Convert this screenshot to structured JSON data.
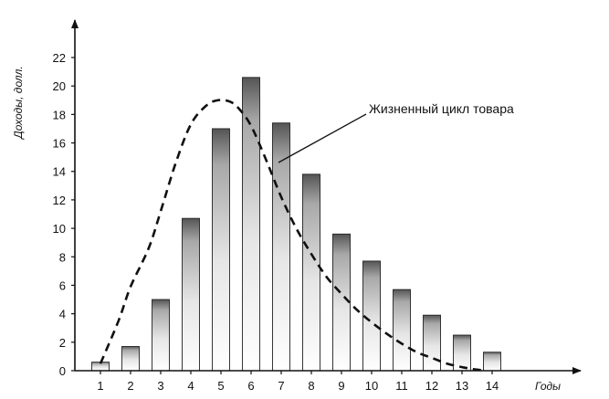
{
  "chart_data": {
    "type": "bar",
    "categories": [
      "1",
      "2",
      "3",
      "4",
      "5",
      "6",
      "7",
      "8",
      "9",
      "10",
      "11",
      "12",
      "13",
      "14"
    ],
    "values": [
      0.6,
      1.7,
      5.0,
      10.7,
      17.0,
      20.6,
      17.4,
      13.8,
      9.6,
      7.7,
      5.7,
      3.9,
      2.5,
      1.3
    ],
    "curve": {
      "label": "Жизненный цикл товара",
      "style": "dashed",
      "x": [
        1,
        1.6,
        2,
        2.6,
        3,
        3.5,
        4,
        4.5,
        4.9,
        5.3,
        5.6,
        6,
        6.5,
        7,
        7.5,
        8,
        8.5,
        9,
        9.5,
        10,
        10.5,
        11,
        11.5,
        12,
        12.5,
        13,
        13.4,
        13.8
      ],
      "y": [
        0.5,
        3.5,
        5.9,
        8.6,
        11.2,
        14.6,
        17.3,
        18.6,
        19.0,
        18.9,
        18.4,
        17.2,
        14.8,
        12.2,
        10.0,
        8.2,
        6.6,
        5.4,
        4.3,
        3.4,
        2.6,
        1.9,
        1.3,
        0.9,
        0.5,
        0.25,
        0.1,
        0.0
      ]
    },
    "ylabel": "Доходы, долл.",
    "xlabel": "Годы",
    "ylim": [
      0,
      22
    ],
    "yticks": [
      "0",
      "2",
      "4",
      "6",
      "8",
      "10",
      "12",
      "14",
      "16",
      "18",
      "20",
      "22"
    ],
    "grid": false,
    "bar_style": "white bars shaded darker toward the top"
  }
}
